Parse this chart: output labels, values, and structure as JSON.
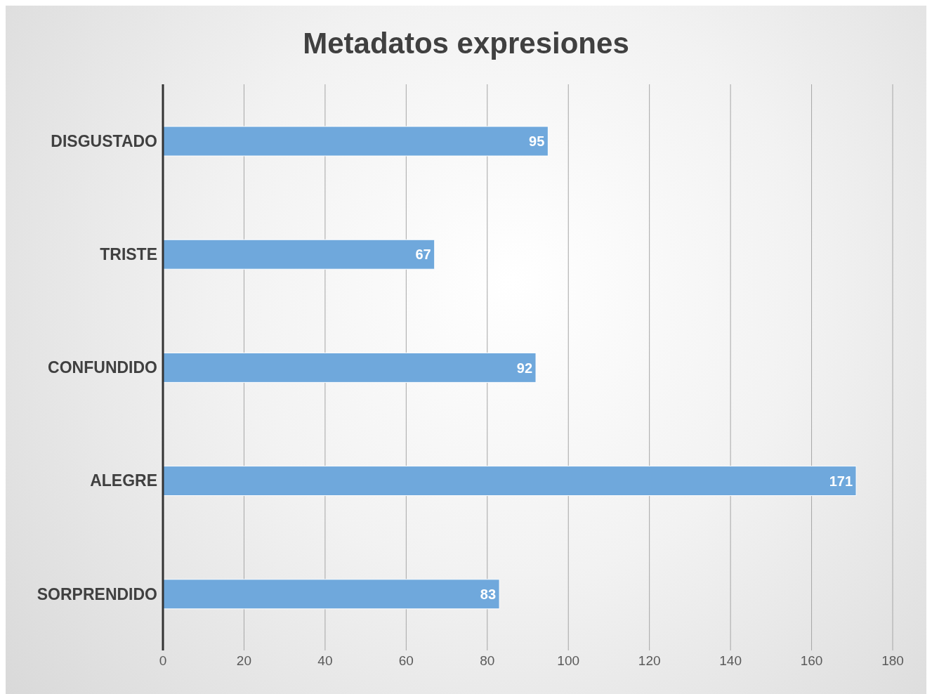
{
  "chart_data": {
    "type": "bar",
    "title": "Metadatos expresiones",
    "orientation": "horizontal",
    "categories": [
      "DISGUSTADO",
      "TRISTE",
      "CONFUNDIDO",
      "ALEGRE",
      "SORPRENDIDO"
    ],
    "values": [
      95,
      67,
      92,
      171,
      83
    ],
    "color": "#6fa8dc",
    "xlim": [
      0,
      180
    ],
    "xticks": [
      0,
      20,
      40,
      60,
      80,
      100,
      120,
      140,
      160,
      180
    ],
    "grid": "x",
    "data_labels": true
  }
}
